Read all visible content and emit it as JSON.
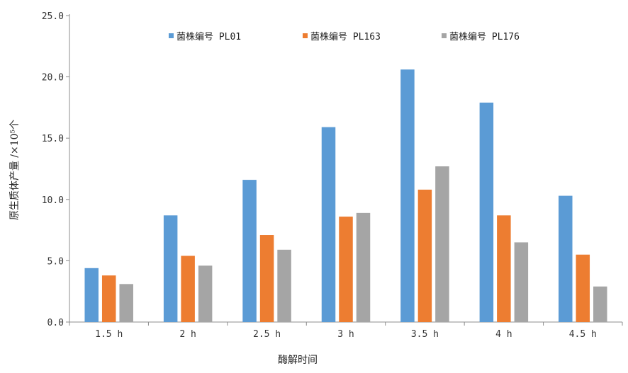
{
  "chart_data": {
    "type": "bar",
    "title": "",
    "xlabel": "酶解时间",
    "ylabel": "原生质体产量 /×10⁵个",
    "categories": [
      "1.5 h",
      "2 h",
      "2.5 h",
      "3 h",
      "3.5 h",
      "4 h",
      "4.5 h"
    ],
    "y_ticks": [
      "0.0",
      "5.0",
      "10.0",
      "15.0",
      "20.0",
      "25.0"
    ],
    "ylim": [
      0,
      25
    ],
    "grid": false,
    "legend_position": "top",
    "series": [
      {
        "name": "菌株编号 PL01",
        "color": "#5B9BD5",
        "values": [
          4.4,
          8.7,
          11.6,
          15.9,
          20.6,
          17.9,
          10.3
        ]
      },
      {
        "name": "菌株编号 PL163",
        "color": "#ED7D31",
        "values": [
          3.8,
          5.4,
          7.1,
          8.6,
          10.8,
          8.7,
          5.5
        ]
      },
      {
        "name": "菌株编号 PL176",
        "color": "#A5A5A5",
        "values": [
          3.1,
          4.6,
          5.9,
          8.9,
          12.7,
          6.5,
          2.9
        ]
      }
    ]
  }
}
